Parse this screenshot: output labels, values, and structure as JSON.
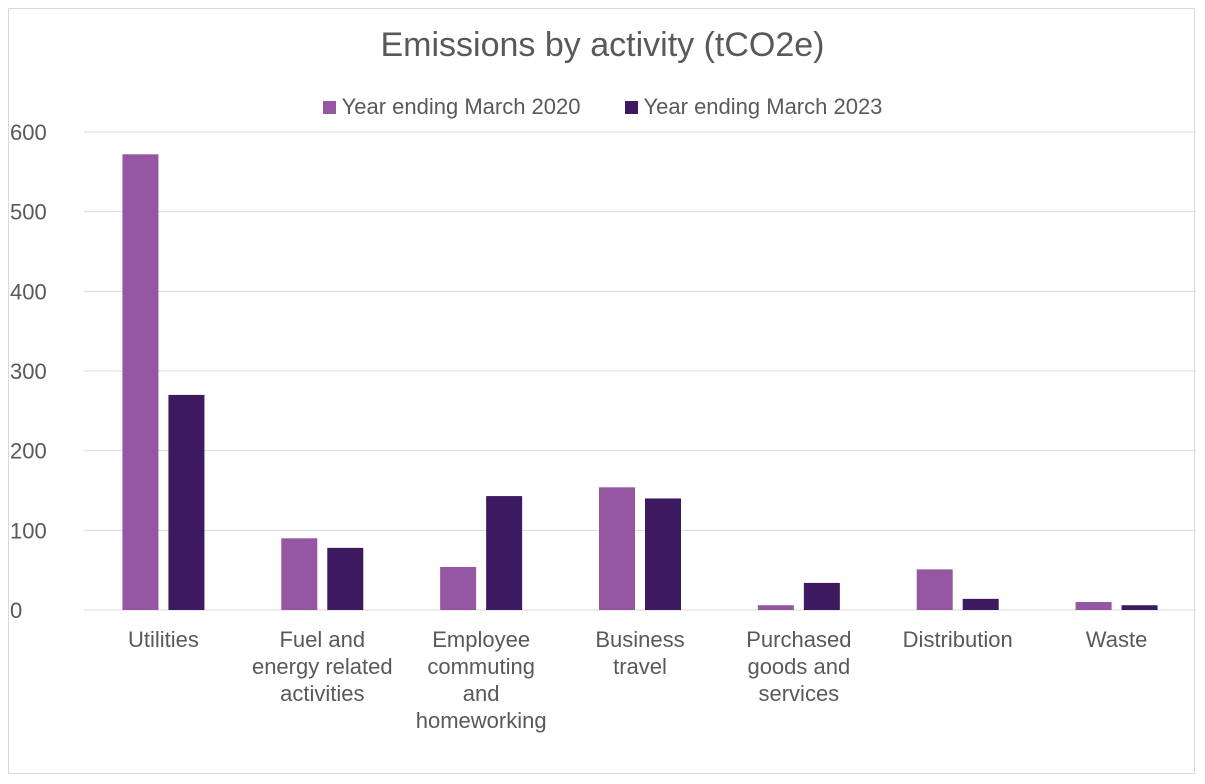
{
  "chart_data": {
    "type": "bar",
    "title": "Emissions by activity (tCO2e)",
    "xlabel": "",
    "ylabel": "",
    "ylim": [
      0,
      600
    ],
    "yticks": [
      0,
      100,
      200,
      300,
      400,
      500,
      600
    ],
    "grid": true,
    "legend_position": "top",
    "categories": [
      "Utilities",
      "Fuel and energy related activities",
      "Employee commuting and homeworking",
      "Business travel",
      "Purchased goods and services",
      "Distribution",
      "Waste"
    ],
    "category_lines": [
      [
        "Utilities"
      ],
      [
        "Fuel and",
        "energy related",
        "activities"
      ],
      [
        "Employee",
        "commuting",
        "and",
        "homeworking"
      ],
      [
        "Business",
        "travel"
      ],
      [
        "Purchased",
        "goods and",
        "services"
      ],
      [
        "Distribution"
      ],
      [
        "Waste"
      ]
    ],
    "series": [
      {
        "name": "Year ending March 2020",
        "color": "#9657a2",
        "values": [
          572,
          90,
          54,
          154,
          6,
          51,
          10
        ]
      },
      {
        "name": "Year ending March 2023",
        "color": "#3d1a60",
        "values": [
          270,
          78,
          143,
          140,
          34,
          14,
          6
        ]
      }
    ]
  }
}
